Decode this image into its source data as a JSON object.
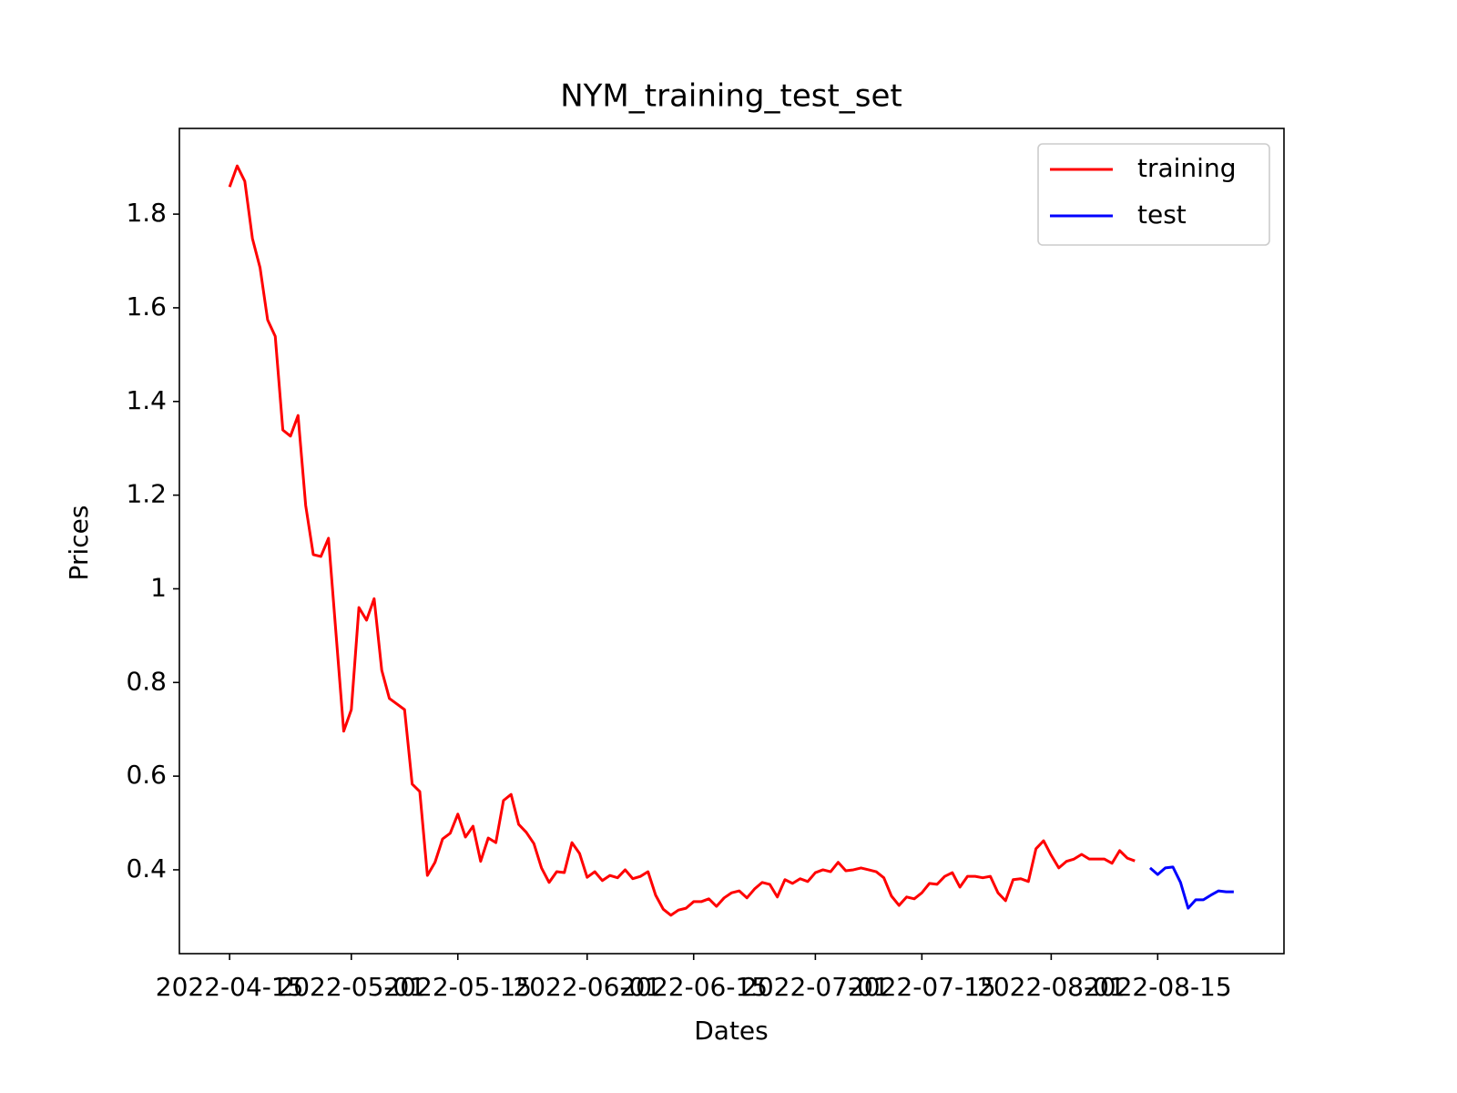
{
  "chart_data": {
    "type": "line",
    "title": "NYM_training_test_set",
    "xlabel": "Dates",
    "ylabel": "Prices",
    "legend": "upper right",
    "xlim": [
      "2022-04-08T09:36",
      "2022-08-31T14:24"
    ],
    "xticks": [
      "2022-04-15",
      "2022-05-01",
      "2022-05-15",
      "2022-06-01",
      "2022-06-15",
      "2022-07-01",
      "2022-07-15",
      "2022-08-01",
      "2022-08-15"
    ],
    "ylim": [
      0.221,
      1.983
    ],
    "yticks": [
      0.4,
      0.6,
      0.8,
      1.0,
      1.2,
      1.4,
      1.6,
      1.8
    ],
    "series": [
      {
        "name": "training",
        "color": "#ff0000",
        "x": [
          "2022-04-15",
          "2022-04-16",
          "2022-04-17",
          "2022-04-18",
          "2022-04-19",
          "2022-04-20",
          "2022-04-21",
          "2022-04-22",
          "2022-04-23",
          "2022-04-24",
          "2022-04-25",
          "2022-04-26",
          "2022-04-27",
          "2022-04-28",
          "2022-04-29",
          "2022-04-30",
          "2022-05-01",
          "2022-05-02",
          "2022-05-03",
          "2022-05-04",
          "2022-05-05",
          "2022-05-06",
          "2022-05-07",
          "2022-05-08",
          "2022-05-09",
          "2022-05-10",
          "2022-05-11",
          "2022-05-12",
          "2022-05-13",
          "2022-05-14",
          "2022-05-15",
          "2022-05-16",
          "2022-05-17",
          "2022-05-18",
          "2022-05-19",
          "2022-05-20",
          "2022-05-21",
          "2022-05-22",
          "2022-05-23",
          "2022-05-24",
          "2022-05-25",
          "2022-05-26",
          "2022-05-27",
          "2022-05-28",
          "2022-05-29",
          "2022-05-30",
          "2022-05-31",
          "2022-06-01",
          "2022-06-02",
          "2022-06-03",
          "2022-06-04",
          "2022-06-05",
          "2022-06-06",
          "2022-06-07",
          "2022-06-08",
          "2022-06-09",
          "2022-06-10",
          "2022-06-11",
          "2022-06-12",
          "2022-06-13",
          "2022-06-14",
          "2022-06-15",
          "2022-06-16",
          "2022-06-17",
          "2022-06-18",
          "2022-06-19",
          "2022-06-20",
          "2022-06-21",
          "2022-06-22",
          "2022-06-23",
          "2022-06-24",
          "2022-06-25",
          "2022-06-26",
          "2022-06-27",
          "2022-06-28",
          "2022-06-29",
          "2022-06-30",
          "2022-07-01",
          "2022-07-02",
          "2022-07-03",
          "2022-07-04",
          "2022-07-05",
          "2022-07-06",
          "2022-07-07",
          "2022-07-08",
          "2022-07-09",
          "2022-07-10",
          "2022-07-11",
          "2022-07-12",
          "2022-07-13",
          "2022-07-14",
          "2022-07-15",
          "2022-07-16",
          "2022-07-17",
          "2022-07-18",
          "2022-07-19",
          "2022-07-20",
          "2022-07-21",
          "2022-07-22",
          "2022-07-23",
          "2022-07-24",
          "2022-07-25",
          "2022-07-26",
          "2022-07-27",
          "2022-07-28",
          "2022-07-29",
          "2022-07-30",
          "2022-07-31",
          "2022-08-01",
          "2022-08-02",
          "2022-08-03",
          "2022-08-04",
          "2022-08-05",
          "2022-08-06",
          "2022-08-07",
          "2022-08-08",
          "2022-08-09",
          "2022-08-10",
          "2022-08-11",
          "2022-08-12"
        ],
        "values": [
          1.858,
          1.903,
          1.87,
          1.748,
          1.686,
          1.574,
          1.539,
          1.339,
          1.326,
          1.37,
          1.178,
          1.073,
          1.069,
          1.108,
          0.902,
          0.696,
          0.742,
          0.96,
          0.933,
          0.979,
          0.826,
          0.766,
          0.754,
          0.742,
          0.583,
          0.567,
          0.388,
          0.416,
          0.466,
          0.478,
          0.519,
          0.47,
          0.493,
          0.418,
          0.468,
          0.458,
          0.548,
          0.561,
          0.497,
          0.48,
          0.456,
          0.404,
          0.373,
          0.396,
          0.394,
          0.458,
          0.435,
          0.384,
          0.396,
          0.377,
          0.388,
          0.383,
          0.4,
          0.381,
          0.386,
          0.396,
          0.346,
          0.316,
          0.303,
          0.314,
          0.318,
          0.332,
          0.332,
          0.338,
          0.322,
          0.34,
          0.351,
          0.355,
          0.34,
          0.359,
          0.373,
          0.369,
          0.342,
          0.379,
          0.371,
          0.381,
          0.375,
          0.394,
          0.4,
          0.396,
          0.416,
          0.398,
          0.4,
          0.404,
          0.4,
          0.396,
          0.383,
          0.344,
          0.324,
          0.342,
          0.338,
          0.351,
          0.371,
          0.369,
          0.386,
          0.394,
          0.363,
          0.386,
          0.386,
          0.383,
          0.386,
          0.351,
          0.334,
          0.379,
          0.381,
          0.375,
          0.445,
          0.462,
          0.431,
          0.404,
          0.418,
          0.423,
          0.433,
          0.423,
          0.423,
          0.423,
          0.414,
          0.441,
          0.425,
          0.419
        ]
      },
      {
        "name": "test",
        "color": "#0000ff",
        "x": [
          "2022-08-14",
          "2022-08-15",
          "2022-08-16",
          "2022-08-17",
          "2022-08-18",
          "2022-08-19",
          "2022-08-20",
          "2022-08-21",
          "2022-08-22",
          "2022-08-23",
          "2022-08-24",
          "2022-08-25"
        ],
        "values": [
          0.404,
          0.39,
          0.404,
          0.406,
          0.373,
          0.318,
          0.336,
          0.336,
          0.346,
          0.355,
          0.353,
          0.353
        ]
      }
    ]
  }
}
